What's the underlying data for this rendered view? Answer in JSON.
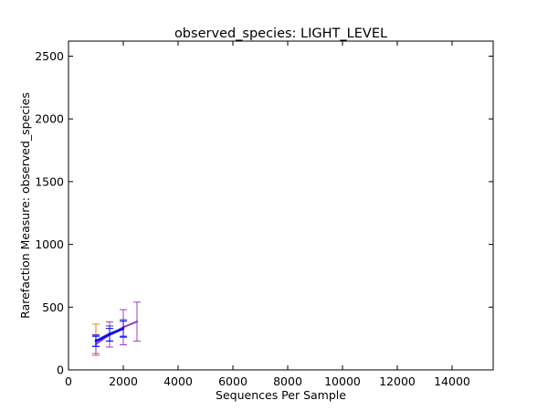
{
  "chart_data": {
    "type": "line",
    "title": "observed_species: LIGHT_LEVEL",
    "xlabel": "Sequences Per Sample",
    "ylabel": "Rarefaction Measure: observed_species",
    "xlim": [
      0,
      15500
    ],
    "ylim": [
      0,
      2620
    ],
    "xticks": [
      0,
      2000,
      4000,
      6000,
      8000,
      10000,
      12000,
      14000
    ],
    "yticks": [
      0,
      500,
      1000,
      1500,
      2000,
      2500
    ],
    "grid": false,
    "legend": "none",
    "series": [
      {
        "color": "#e08a00",
        "points": [
          {
            "x": 1000,
            "y": 240,
            "err": 125
          }
        ]
      },
      {
        "color": "#9b3fbf",
        "points": [
          {
            "x": 1000,
            "y": 205,
            "err": 75
          },
          {
            "x": 1500,
            "y": 282,
            "err": 100
          },
          {
            "x": 2000,
            "y": 340,
            "err": 140
          },
          {
            "x": 2500,
            "y": 385,
            "err": 155
          }
        ]
      },
      {
        "color": "#3333cc",
        "points": [
          {
            "x": 1000,
            "y": 232,
            "err": 45
          },
          {
            "x": 1500,
            "y": 290,
            "err": 60
          },
          {
            "x": 2000,
            "y": 330,
            "err": 70
          }
        ]
      },
      {
        "color": "#0000ff",
        "points": [
          {
            "x": 1000,
            "y": 228,
            "err": 40
          },
          {
            "x": 1500,
            "y": 280,
            "err": 50
          },
          {
            "x": 2000,
            "y": 328,
            "err": 60
          }
        ]
      }
    ]
  }
}
